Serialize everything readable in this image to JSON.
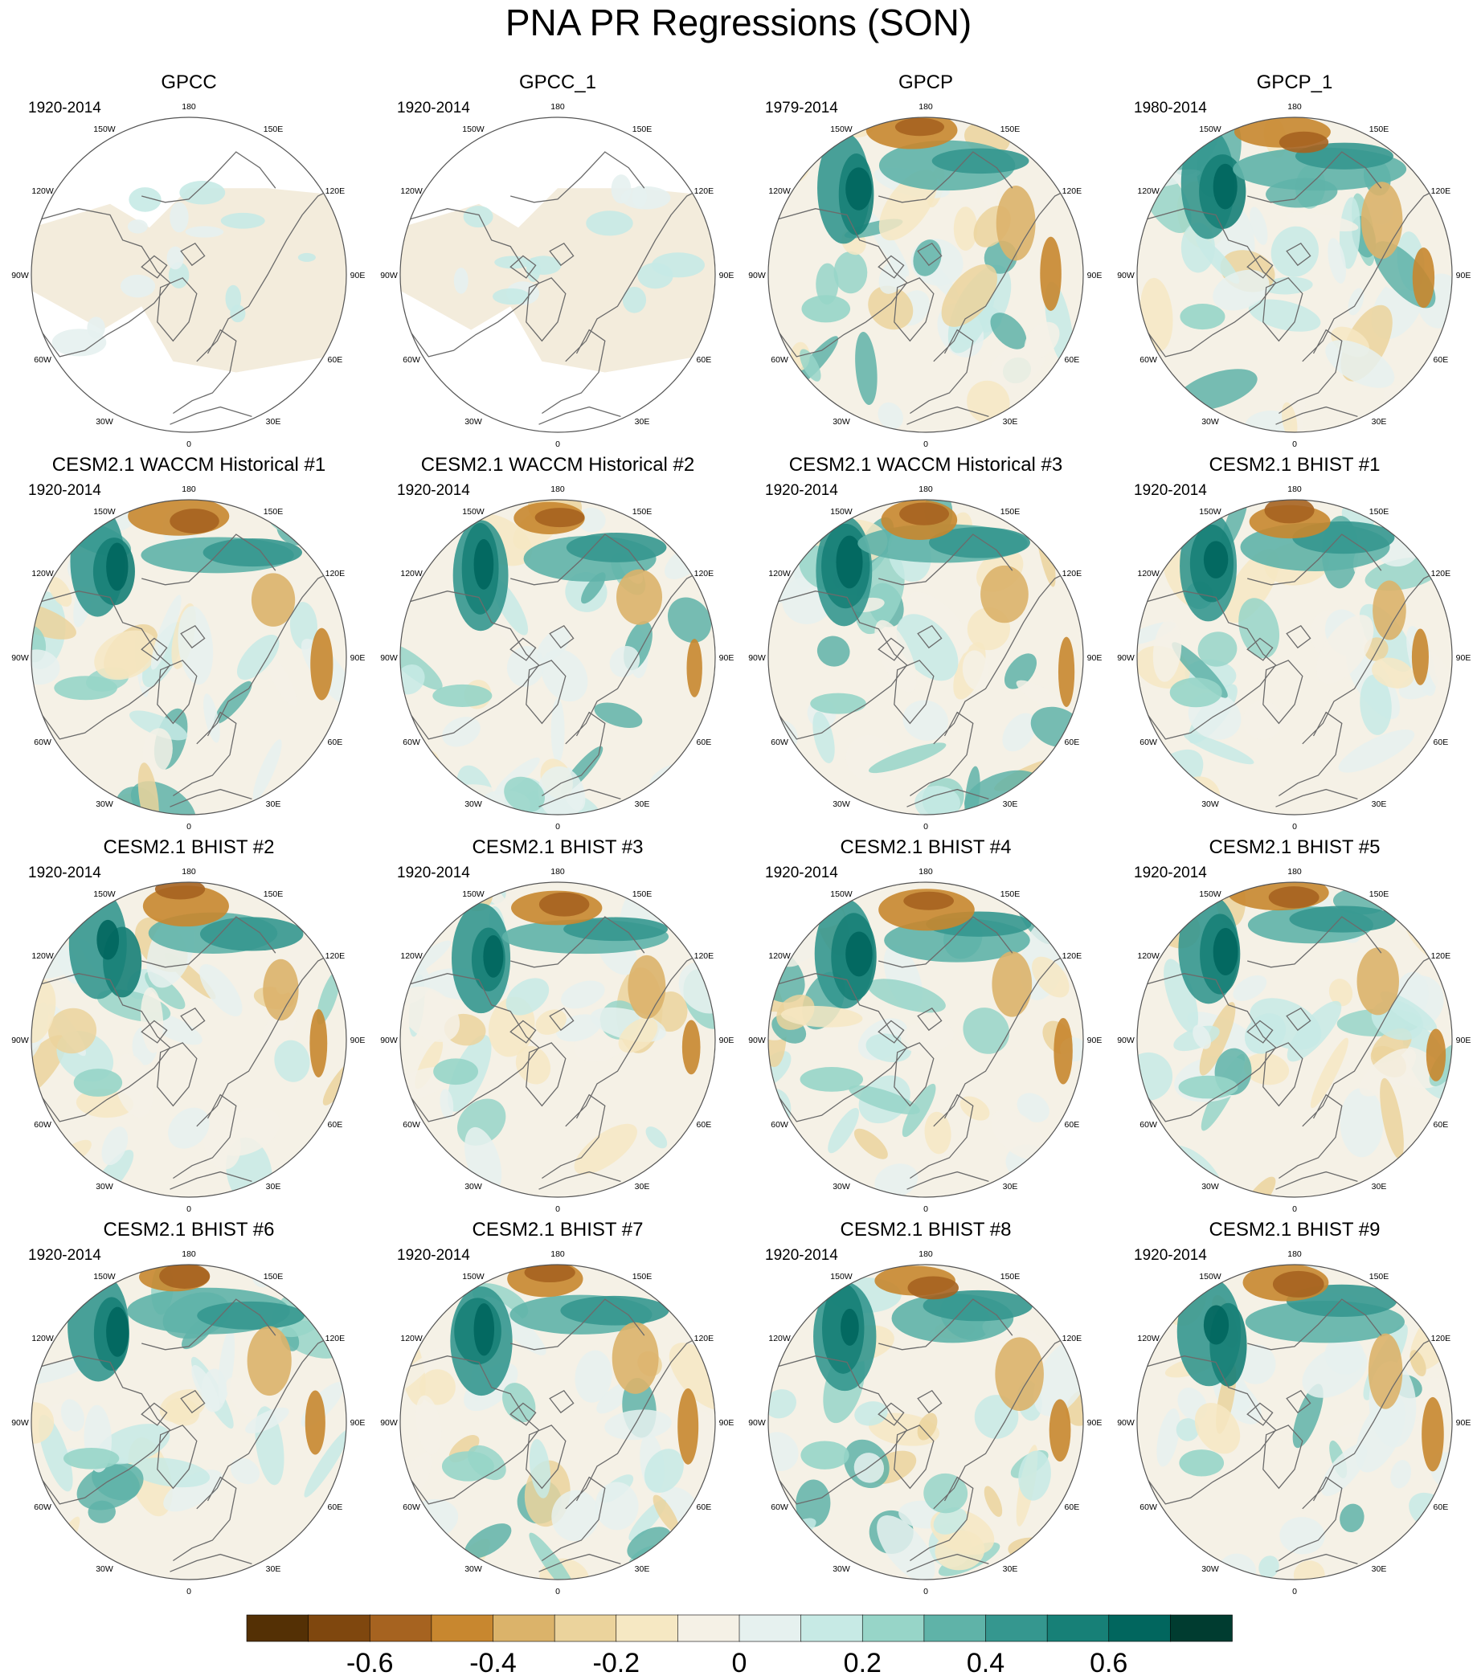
{
  "chart_data": {
    "type": "heatmap",
    "title": "PNA PR Regressions (SON)",
    "projection": "polar stereographic, Northern Hemisphere",
    "longitude_labels": [
      "180",
      "150E",
      "120E",
      "90E",
      "60E",
      "30E",
      "0",
      "30W",
      "60W",
      "90W",
      "120W",
      "150W"
    ],
    "panels": [
      {
        "title": "GPCC",
        "period": "1920-2014",
        "land_only": true
      },
      {
        "title": "GPCC_1",
        "period": "1920-2014",
        "land_only": true
      },
      {
        "title": "GPCP",
        "period": "1979-2014",
        "land_only": false
      },
      {
        "title": "GPCP_1",
        "period": "1980-2014",
        "land_only": false
      },
      {
        "title": "CESM2.1 WACCM Historical #1",
        "period": "1920-2014",
        "land_only": false
      },
      {
        "title": "CESM2.1 WACCM Historical #2",
        "period": "1920-2014",
        "land_only": false
      },
      {
        "title": "CESM2.1 WACCM Historical #3",
        "period": "1920-2014",
        "land_only": false
      },
      {
        "title": "CESM2.1 BHIST #1",
        "period": "1920-2014",
        "land_only": false
      },
      {
        "title": "CESM2.1 BHIST #2",
        "period": "1920-2014",
        "land_only": false
      },
      {
        "title": "CESM2.1 BHIST #3",
        "period": "1920-2014",
        "land_only": false
      },
      {
        "title": "CESM2.1 BHIST #4",
        "period": "1920-2014",
        "land_only": false
      },
      {
        "title": "CESM2.1 BHIST #5",
        "period": "1920-2014",
        "land_only": false
      },
      {
        "title": "CESM2.1 BHIST #6",
        "period": "1920-2014",
        "land_only": false
      },
      {
        "title": "CESM2.1 BHIST #7",
        "period": "1920-2014",
        "land_only": false
      },
      {
        "title": "CESM2.1 BHIST #8",
        "period": "1920-2014",
        "land_only": false
      },
      {
        "title": "CESM2.1 BHIST #9",
        "period": "1920-2014",
        "land_only": false
      }
    ],
    "colorbar": {
      "colors": [
        "#543005",
        "#7f470e",
        "#a66320",
        "#c8872f",
        "#dbb36a",
        "#ebd39c",
        "#f6e8c3",
        "#f5f1e6",
        "#e6f1ef",
        "#c7eae5",
        "#97d5c8",
        "#5fb3a8",
        "#35978f",
        "#178077",
        "#01665e",
        "#003c30"
      ],
      "tick_labels": [
        "-0.6",
        "-0.4",
        "-0.2",
        "0",
        "0.2",
        "0.4",
        "0.6"
      ],
      "tick_values": [
        -0.6,
        -0.4,
        -0.2,
        0,
        0.2,
        0.4,
        0.6
      ],
      "range": [
        -0.8,
        0.8
      ],
      "interval": 0.1
    }
  }
}
